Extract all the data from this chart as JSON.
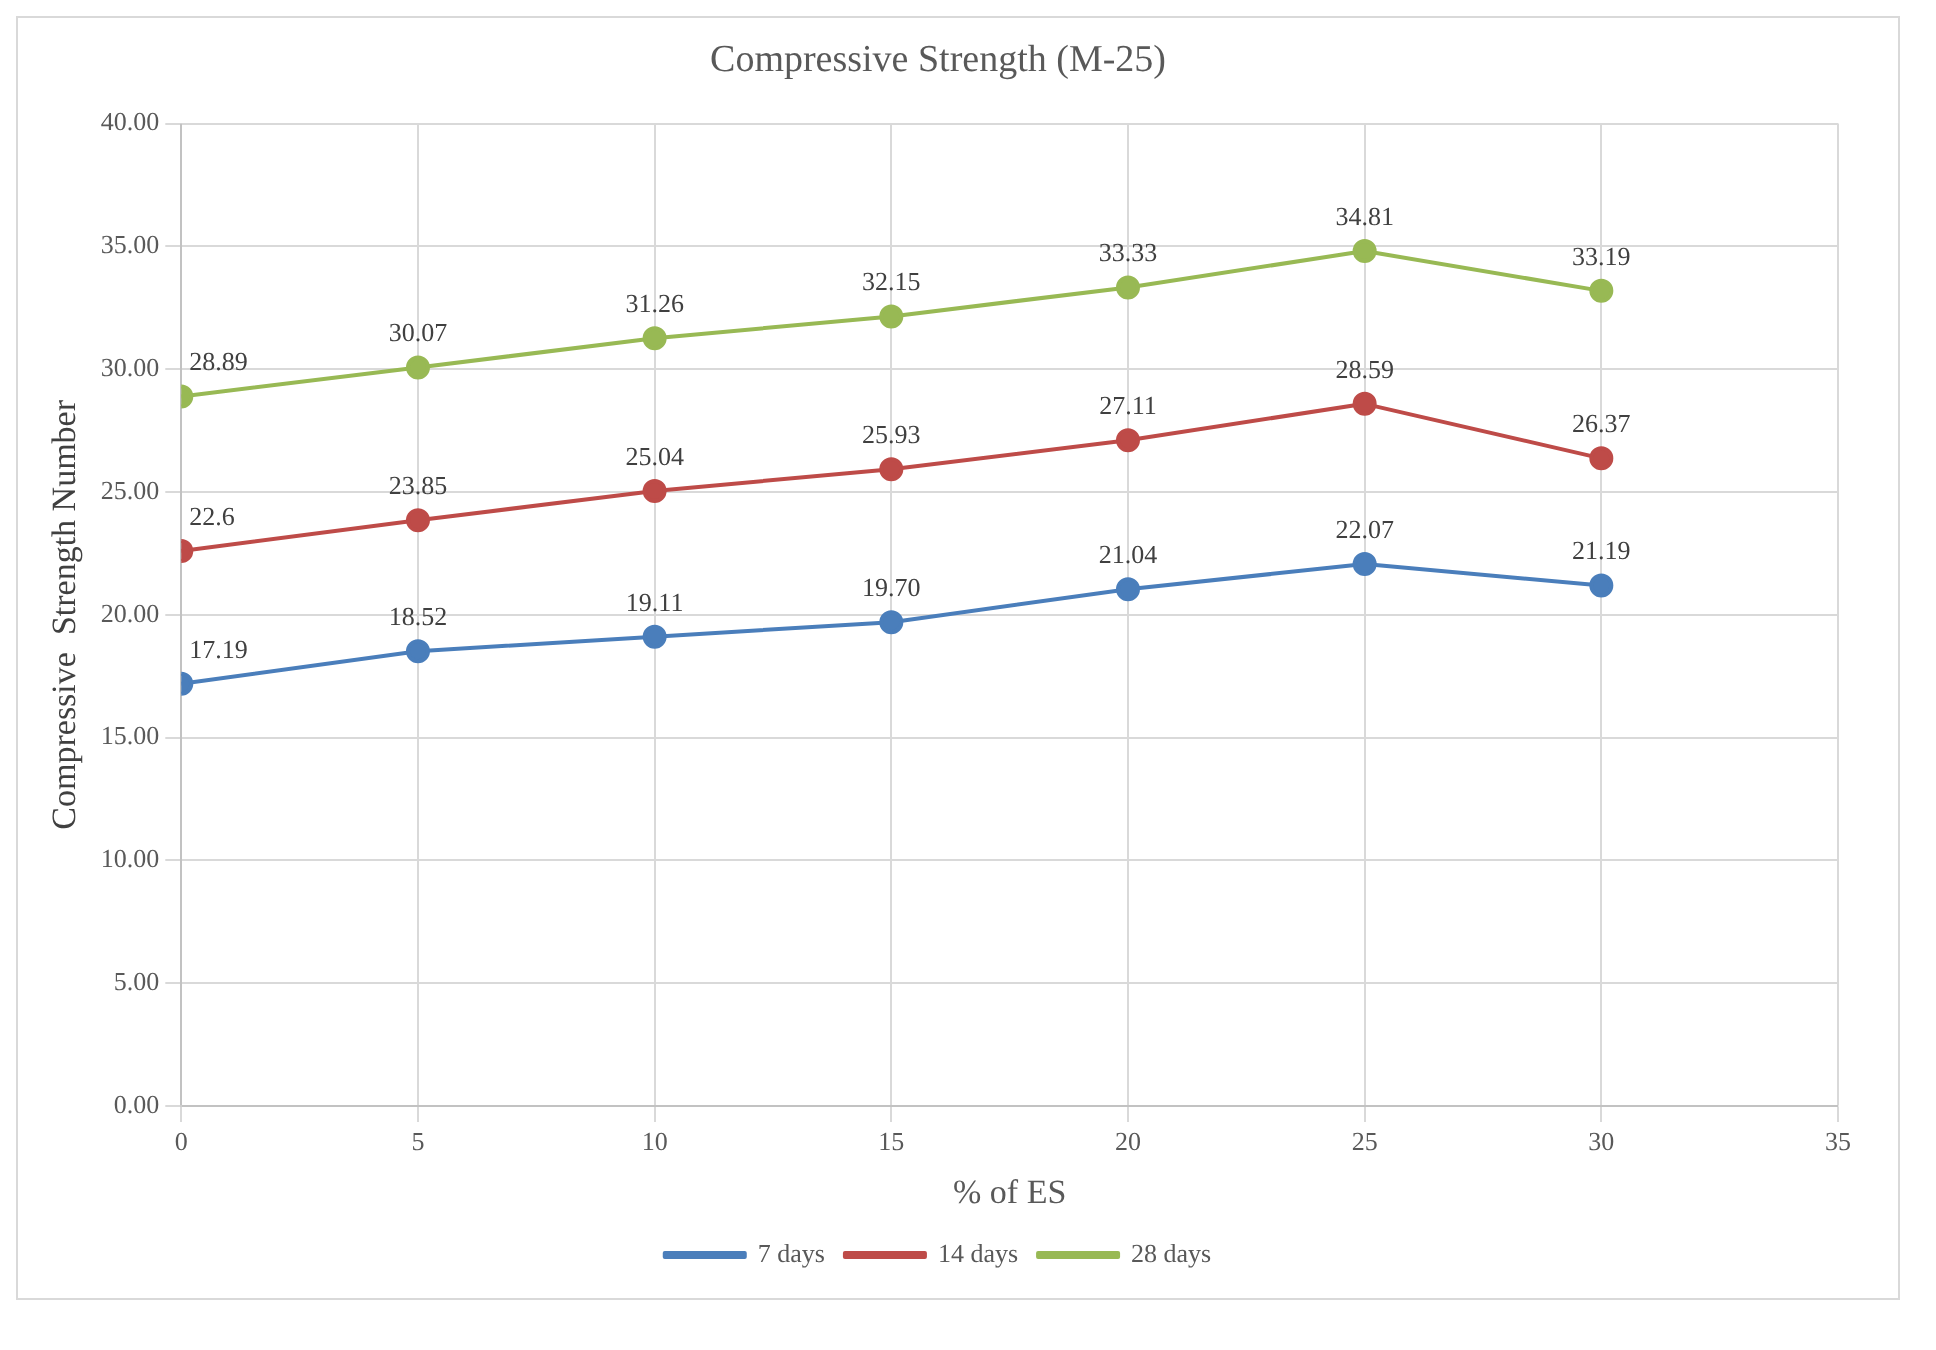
{
  "chart_data": {
    "type": "line",
    "title": "Compressive Strength (M-25)",
    "xlabel": "% of ES",
    "ylabel": "Compressive  Strength Number",
    "x": [
      0,
      5,
      10,
      15,
      20,
      25,
      30
    ],
    "series": [
      {
        "name": "7 days",
        "color": "#4a7ebb",
        "values": [
          17.19,
          18.52,
          19.11,
          19.7,
          21.04,
          22.07,
          21.19
        ],
        "value_labels": [
          "17.19",
          "18.52",
          "19.11",
          "19.70",
          "21.04",
          "22.07",
          "21.19"
        ]
      },
      {
        "name": "14 days",
        "color": "#be4b48",
        "values": [
          22.6,
          23.85,
          25.04,
          25.93,
          27.11,
          28.59,
          26.37
        ],
        "value_labels": [
          "22.6",
          "23.85",
          "25.04",
          "25.93",
          "27.11",
          "28.59",
          "26.37"
        ]
      },
      {
        "name": "28 days",
        "color": "#98b954",
        "values": [
          28.89,
          30.07,
          31.26,
          32.15,
          33.33,
          34.81,
          33.19
        ],
        "value_labels": [
          "28.89",
          "30.07",
          "31.26",
          "32.15",
          "33.33",
          "34.81",
          "33.19"
        ]
      }
    ],
    "xlim": [
      0,
      35
    ],
    "xticks": [
      0,
      5,
      10,
      15,
      20,
      25,
      30,
      35
    ],
    "ylim": [
      0,
      40
    ],
    "yticks": [
      {
        "value": 0,
        "label": "0.00"
      },
      {
        "value": 5,
        "label": "5.00"
      },
      {
        "value": 10,
        "label": "10.00"
      },
      {
        "value": 15,
        "label": "15.00"
      },
      {
        "value": 20,
        "label": "20.00"
      },
      {
        "value": 25,
        "label": "25.00"
      },
      {
        "value": 30,
        "label": "30.00"
      },
      {
        "value": 35,
        "label": "35.00"
      },
      {
        "value": 40,
        "label": "40.00"
      }
    ],
    "grid": true,
    "legend": "bottom",
    "marker": "circle",
    "line_style": "solid"
  }
}
